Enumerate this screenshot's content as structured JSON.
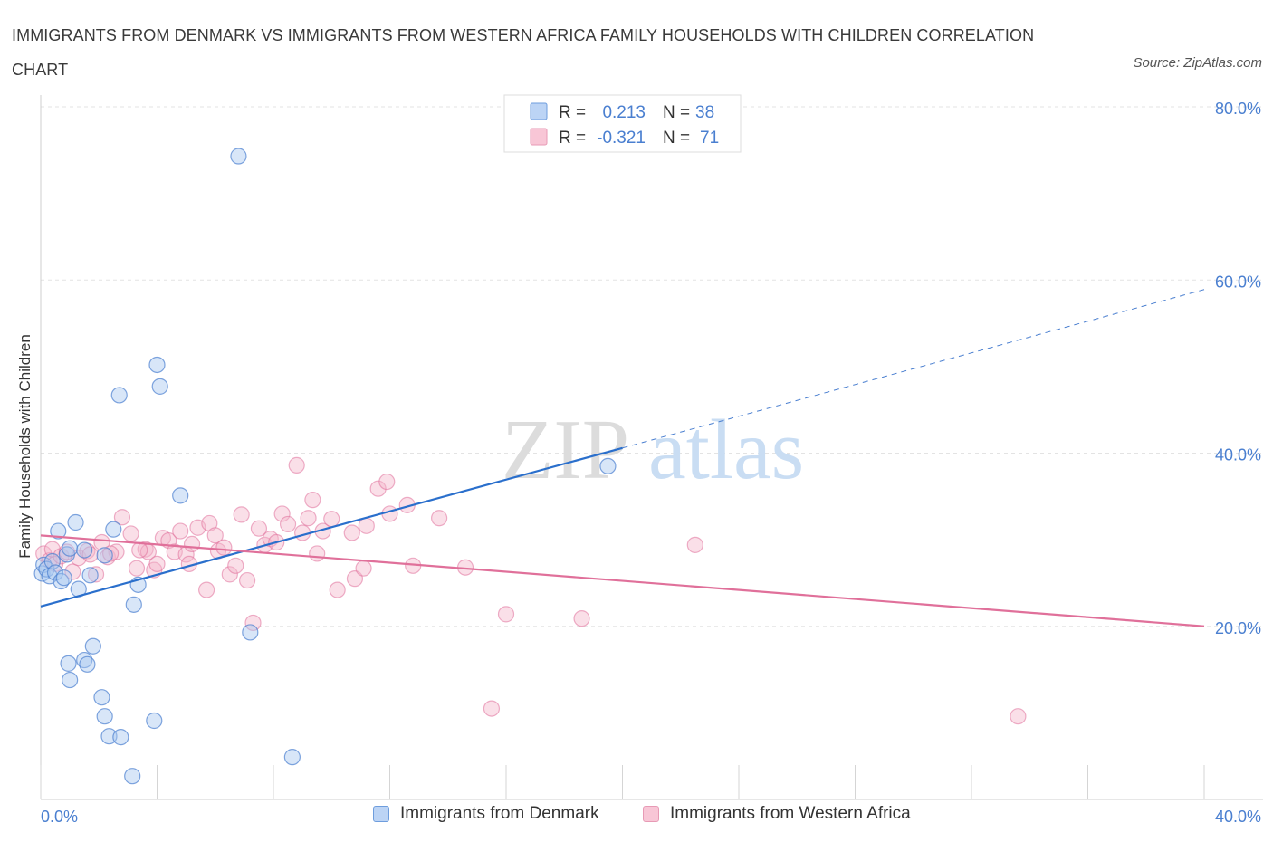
{
  "title": "IMMIGRANTS FROM DENMARK VS IMMIGRANTS FROM WESTERN AFRICA FAMILY HOUSEHOLDS WITH CHILDREN CORRELATION CHART",
  "source": "Source: ZipAtlas.com",
  "watermark": {
    "zip": "ZIP",
    "atlas": "atlas"
  },
  "colors": {
    "blue": "#4a7fd0",
    "blue_fill": "#a9c7f0",
    "blue_line": "#2a6fcc",
    "pink": "#e0709a",
    "pink_fill": "#f5b8cc",
    "pink_line": "#e0709a"
  },
  "legend": {
    "rows": [
      {
        "r_label": "R =",
        "r_value": "0.213",
        "n_label": "N =",
        "n_value": "38"
      },
      {
        "r_label": "R =",
        "r_value": "-0.321",
        "n_label": "N =",
        "n_value": "71"
      }
    ],
    "bottom": [
      "Immigrants from Denmark",
      "Immigrants from Western Africa"
    ]
  },
  "chart_data": {
    "type": "scatter",
    "xlabel": "",
    "ylabel": "Family Households with Children",
    "xlim": [
      0,
      40
    ],
    "ylim": [
      0,
      80
    ],
    "x_tick_labels": [
      "0.0%",
      "40.0%"
    ],
    "y_tick_labels": [
      "20.0%",
      "40.0%",
      "60.0%",
      "80.0%"
    ],
    "y_ticks": [
      20,
      40,
      60,
      80
    ],
    "x_minor_ticks": [
      0,
      4,
      8,
      12,
      16,
      20,
      24,
      28,
      32,
      36,
      40
    ],
    "grid": true,
    "series": [
      {
        "name": "Immigrants from Denmark",
        "R": 0.213,
        "N": 38,
        "trend": {
          "x_start": 0,
          "y_start": 22.3,
          "x_solid_end": 20,
          "y_solid_end": 40.6,
          "x_dash_end": 40,
          "y_dash_end": 58.9
        },
        "points": [
          [
            0.05,
            26.1
          ],
          [
            0.1,
            27.1
          ],
          [
            0.2,
            26.6
          ],
          [
            0.3,
            25.8
          ],
          [
            0.4,
            27.5
          ],
          [
            0.5,
            26.2
          ],
          [
            0.6,
            31.0
          ],
          [
            0.7,
            25.2
          ],
          [
            0.8,
            25.6
          ],
          [
            0.9,
            28.3
          ],
          [
            1.0,
            29.0
          ],
          [
            1.2,
            32.0
          ],
          [
            1.3,
            24.3
          ],
          [
            1.5,
            28.8
          ],
          [
            1.7,
            25.9
          ],
          [
            1.8,
            17.7
          ],
          [
            1.5,
            16.1
          ],
          [
            1.6,
            15.6
          ],
          [
            0.95,
            15.7
          ],
          [
            1.0,
            13.8
          ],
          [
            2.1,
            11.8
          ],
          [
            2.2,
            9.6
          ],
          [
            2.35,
            7.3
          ],
          [
            2.75,
            7.2
          ],
          [
            3.15,
            2.7
          ],
          [
            2.2,
            28.2
          ],
          [
            2.5,
            31.2
          ],
          [
            2.7,
            46.7
          ],
          [
            3.2,
            22.5
          ],
          [
            3.35,
            24.8
          ],
          [
            3.9,
            9.1
          ],
          [
            4.0,
            50.2
          ],
          [
            4.1,
            47.7
          ],
          [
            4.8,
            35.1
          ],
          [
            6.8,
            74.3
          ],
          [
            7.2,
            19.3
          ],
          [
            8.65,
            4.9
          ],
          [
            19.5,
            38.5
          ]
        ]
      },
      {
        "name": "Immigrants from Western Africa",
        "R": -0.321,
        "N": 71,
        "trend": {
          "x_start": 0,
          "y_start": 30.5,
          "x_end": 40,
          "y_end": 20.0
        },
        "points": [
          [
            0.1,
            28.4
          ],
          [
            0.3,
            27.6
          ],
          [
            0.4,
            28.9
          ],
          [
            0.5,
            27.2
          ],
          [
            0.7,
            28.1
          ],
          [
            0.9,
            28.6
          ],
          [
            1.1,
            26.3
          ],
          [
            1.3,
            27.9
          ],
          [
            1.6,
            28.7
          ],
          [
            1.9,
            26.0
          ],
          [
            2.1,
            29.7
          ],
          [
            2.3,
            28.0
          ],
          [
            2.6,
            28.6
          ],
          [
            2.8,
            32.6
          ],
          [
            3.1,
            30.7
          ],
          [
            3.3,
            26.7
          ],
          [
            3.6,
            28.9
          ],
          [
            3.7,
            28.6
          ],
          [
            3.9,
            26.5
          ],
          [
            4.0,
            27.2
          ],
          [
            4.2,
            30.2
          ],
          [
            4.4,
            29.9
          ],
          [
            4.6,
            28.6
          ],
          [
            4.8,
            31.0
          ],
          [
            5.0,
            28.3
          ],
          [
            5.1,
            27.2
          ],
          [
            5.2,
            29.5
          ],
          [
            5.4,
            31.4
          ],
          [
            5.7,
            24.2
          ],
          [
            5.8,
            31.9
          ],
          [
            6.0,
            30.5
          ],
          [
            6.1,
            28.7
          ],
          [
            6.3,
            29.1
          ],
          [
            6.5,
            26.0
          ],
          [
            6.7,
            27.0
          ],
          [
            6.9,
            32.9
          ],
          [
            7.1,
            25.3
          ],
          [
            7.3,
            20.4
          ],
          [
            7.5,
            31.3
          ],
          [
            7.7,
            29.4
          ],
          [
            7.9,
            30.1
          ],
          [
            8.1,
            29.7
          ],
          [
            8.3,
            33.0
          ],
          [
            8.5,
            31.8
          ],
          [
            8.8,
            38.6
          ],
          [
            9.0,
            30.8
          ],
          [
            9.2,
            32.5
          ],
          [
            9.35,
            34.6
          ],
          [
            9.5,
            28.4
          ],
          [
            9.7,
            31.0
          ],
          [
            10.0,
            32.4
          ],
          [
            10.2,
            24.2
          ],
          [
            10.7,
            30.8
          ],
          [
            10.8,
            25.5
          ],
          [
            11.1,
            26.7
          ],
          [
            11.2,
            31.6
          ],
          [
            11.6,
            35.9
          ],
          [
            11.9,
            36.7
          ],
          [
            12.0,
            33.0
          ],
          [
            12.6,
            34.0
          ],
          [
            12.8,
            27.0
          ],
          [
            13.7,
            32.5
          ],
          [
            14.6,
            26.8
          ],
          [
            15.5,
            10.5
          ],
          [
            16.0,
            21.4
          ],
          [
            18.6,
            20.9
          ],
          [
            22.5,
            29.4
          ],
          [
            33.6,
            9.6
          ],
          [
            1.7,
            28.3
          ],
          [
            2.4,
            28.4
          ],
          [
            3.4,
            28.8
          ]
        ]
      }
    ]
  }
}
